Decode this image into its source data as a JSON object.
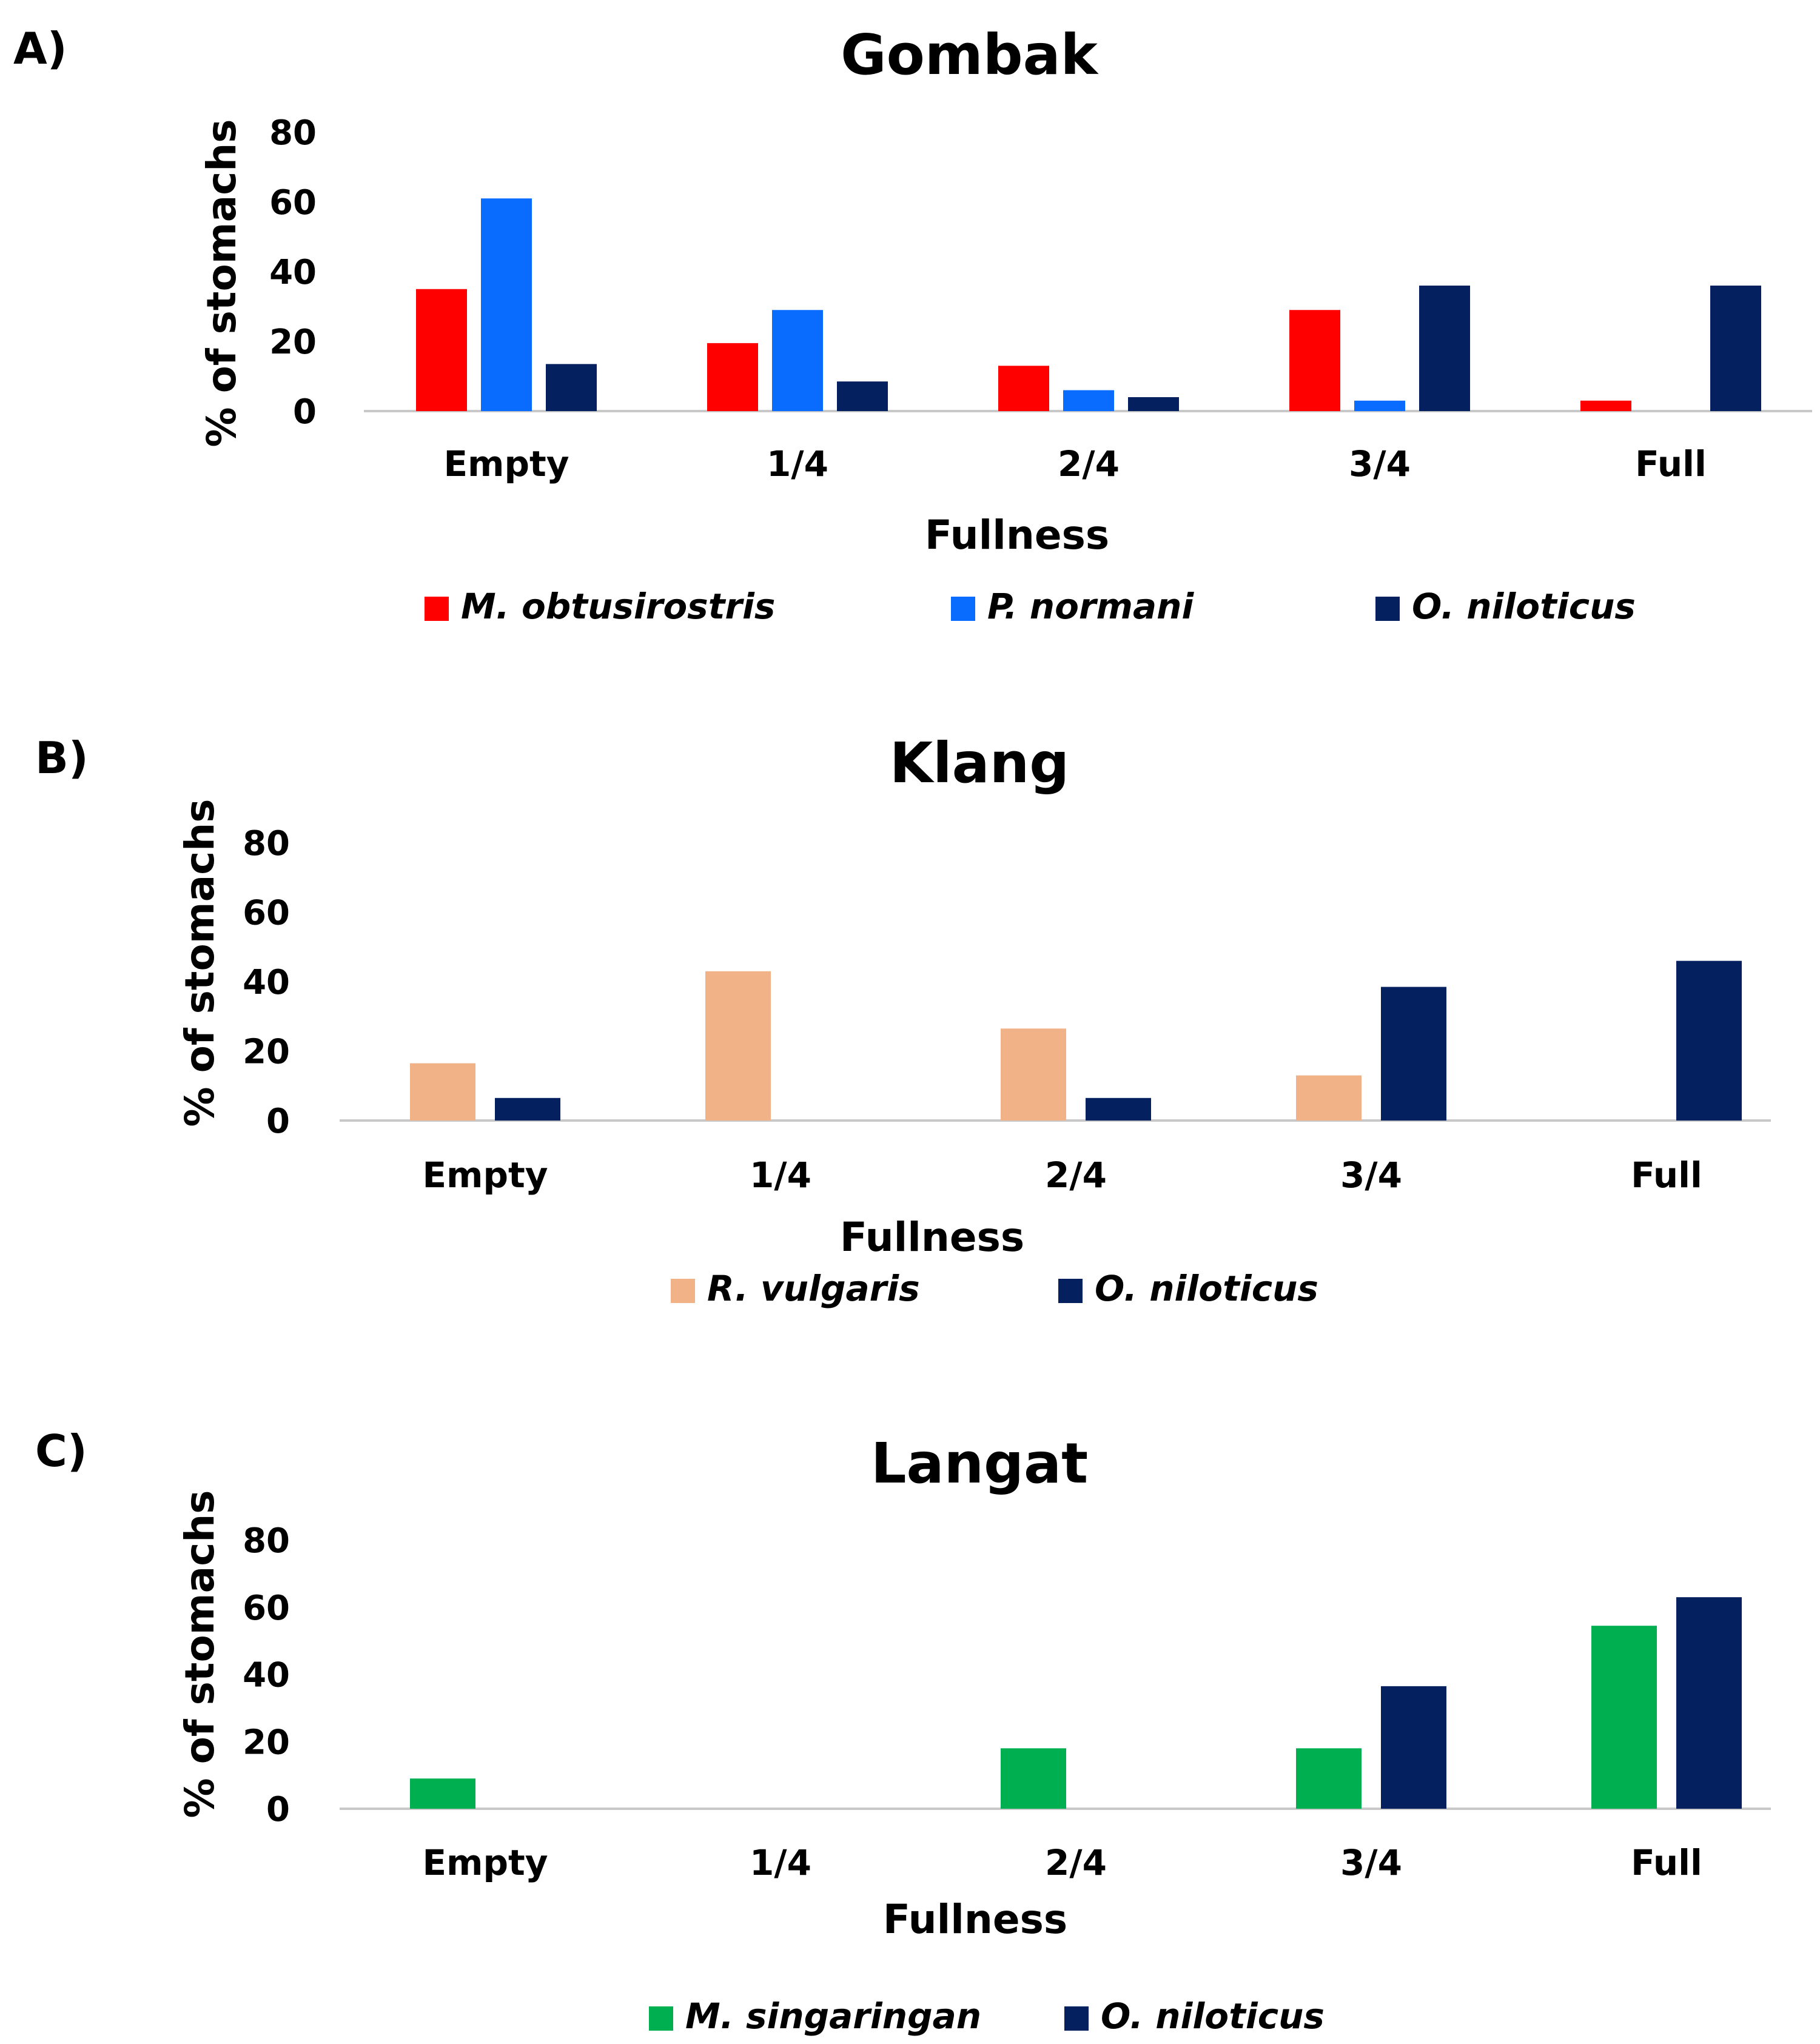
{
  "colors": {
    "M_obtusirostris": "#ff0000",
    "P_normani": "#0a6cff",
    "O_niloticus": "#04205e",
    "R_vulgaris": "#f2b287",
    "M_singaringan": "#00b050"
  },
  "chart_data": [
    {
      "panel": "A)",
      "type": "bar",
      "title": "Gombak",
      "xlabel": "Fullness",
      "ylabel": "% of stomachs",
      "ylim": [
        0,
        80
      ],
      "yticks": [
        0,
        20,
        40,
        60,
        80
      ],
      "grid": false,
      "legend_position": "bottom",
      "categories": [
        "Empty",
        "1/4",
        "2/4",
        "3/4",
        "Full"
      ],
      "series": [
        {
          "name": "M. obtusirostris",
          "color_key": "M_obtusirostris",
          "values": [
            35,
            19.5,
            13,
            29,
            3
          ]
        },
        {
          "name": "P. normani",
          "color_key": "P_normani",
          "values": [
            61,
            29,
            6,
            3,
            0
          ]
        },
        {
          "name": "O. niloticus",
          "color_key": "O_niloticus",
          "values": [
            13.5,
            8.5,
            4,
            36,
            36
          ]
        }
      ]
    },
    {
      "panel": "B)",
      "type": "bar",
      "title": "Klang",
      "xlabel": "Fullness",
      "ylabel": "% of stomachs",
      "ylim": [
        0,
        80
      ],
      "yticks": [
        0,
        20,
        40,
        60,
        80
      ],
      "grid": false,
      "legend_position": "bottom",
      "categories": [
        "Empty",
        "1/4",
        "2/4",
        "3/4",
        "Full"
      ],
      "series": [
        {
          "name": "R. vulgaris",
          "color_key": "R_vulgaris",
          "values": [
            16.5,
            43,
            26.5,
            13,
            0
          ]
        },
        {
          "name": "O. niloticus",
          "color_key": "O_niloticus",
          "values": [
            6.5,
            0,
            6.5,
            38.5,
            46
          ]
        }
      ]
    },
    {
      "panel": "C)",
      "type": "bar",
      "title": "Langat",
      "xlabel": "Fullness",
      "ylabel": "% of stomachs",
      "ylim": [
        0,
        80
      ],
      "yticks": [
        0,
        20,
        40,
        60,
        80
      ],
      "grid": false,
      "legend_position": "bottom",
      "categories": [
        "Empty",
        "1/4",
        "2/4",
        "3/4",
        "Full"
      ],
      "series": [
        {
          "name": "M. singaringan",
          "color_key": "M_singaringan",
          "values": [
            9,
            0,
            18,
            18,
            54.5
          ]
        },
        {
          "name": "O. niloticus",
          "color_key": "O_niloticus",
          "values": [
            0,
            0,
            0,
            36.5,
            63
          ]
        }
      ]
    }
  ]
}
